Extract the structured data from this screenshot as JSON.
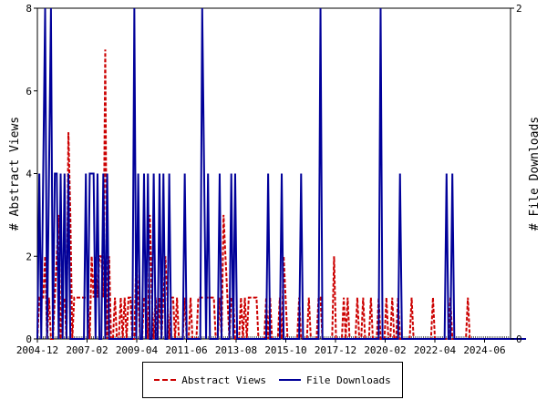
{
  "chart_data": {
    "type": "line",
    "x_axis_ticks": [
      "2004-12",
      "2007-02",
      "2009-04",
      "2011-06",
      "2013-08",
      "2015-10",
      "2017-12",
      "2020-02",
      "2022-04",
      "2024-06"
    ],
    "left_axis": {
      "label": "# Abstract Views",
      "ylim": [
        0,
        8
      ],
      "ticks": [
        "0",
        "2",
        "4",
        "6",
        "8"
      ]
    },
    "right_axis": {
      "label": "# File Downloads",
      "ylim": [
        0,
        2
      ],
      "ticks": [
        "0",
        "2"
      ]
    },
    "months": 245,
    "legend_position": "bottom",
    "grid": false,
    "series": [
      {
        "name": "Abstract Views",
        "axis": "left",
        "style": "dashed",
        "color": "#cc0000",
        "values": [
          0,
          1,
          1,
          1,
          2,
          0,
          1,
          0,
          0,
          1,
          2,
          3,
          0,
          1,
          1,
          0,
          5,
          3,
          0,
          1,
          1,
          1,
          1,
          1,
          1,
          1,
          1,
          0,
          2,
          1,
          2,
          1,
          2,
          2,
          1,
          7,
          0,
          2,
          0,
          0,
          1,
          0,
          0,
          1,
          0,
          1,
          0,
          1,
          1,
          0,
          0,
          2,
          1,
          0,
          0,
          1,
          1,
          0,
          3,
          1,
          0,
          1,
          0,
          1,
          0,
          1,
          2,
          1,
          0,
          1,
          1,
          0,
          1,
          0,
          0,
          0,
          1,
          0,
          0,
          1,
          0,
          0,
          0,
          1,
          1,
          1,
          1,
          1,
          1,
          1,
          1,
          1,
          0,
          0,
          1,
          0,
          3,
          2,
          1,
          0,
          1,
          1,
          0,
          0,
          0,
          1,
          0,
          1,
          0,
          1,
          1,
          1,
          1,
          1,
          0,
          0,
          0,
          0,
          1,
          0,
          1,
          0,
          0,
          0,
          0,
          1,
          0,
          2,
          1,
          0,
          0,
          0,
          0,
          0,
          0,
          1,
          0,
          0,
          0,
          0,
          1,
          0,
          0,
          0,
          0,
          1,
          1,
          0,
          0,
          0,
          0,
          0,
          0,
          2,
          0,
          0,
          0,
          0,
          1,
          0,
          1,
          0,
          0,
          0,
          0,
          1,
          0,
          0,
          1,
          0,
          0,
          0,
          1,
          0,
          0,
          0,
          1,
          0,
          0,
          0,
          1,
          0,
          0,
          1,
          0,
          0,
          1,
          0,
          0,
          0,
          0,
          0,
          0,
          1,
          0,
          0,
          0,
          0,
          0,
          0,
          0,
          0,
          0,
          0,
          1,
          0,
          0,
          0,
          0,
          0,
          0,
          0,
          0,
          1,
          0,
          0,
          0,
          0,
          0,
          0,
          0,
          0,
          1,
          0,
          0,
          0,
          0,
          0,
          0,
          0,
          0,
          0,
          0,
          0,
          0,
          0,
          0,
          0,
          0,
          0,
          0,
          0,
          0,
          0,
          0,
          0,
          0,
          0,
          0,
          0,
          0
        ]
      },
      {
        "name": "File Downloads",
        "axis": "right",
        "style": "solid",
        "color": "#000099",
        "values": [
          0,
          1,
          0,
          1,
          2,
          0,
          1,
          2,
          0,
          1,
          1,
          0,
          1,
          0,
          1,
          0,
          1,
          0,
          0,
          0,
          0,
          0,
          0,
          0,
          0,
          1,
          0,
          1,
          1,
          1,
          0,
          1,
          0,
          0,
          1,
          0,
          1,
          0,
          0,
          0,
          0,
          0,
          0,
          0,
          0,
          0,
          0,
          0,
          0,
          0,
          2,
          0,
          1,
          0,
          0,
          1,
          0,
          1,
          0,
          0,
          1,
          0,
          0,
          1,
          0,
          1,
          0,
          0,
          1,
          0,
          0,
          0,
          0,
          0,
          0,
          0,
          1,
          0,
          0,
          0,
          0,
          0,
          0,
          0,
          0,
          2,
          1,
          0,
          1,
          0,
          0,
          0,
          0,
          0,
          1,
          0,
          0,
          0,
          0,
          0,
          1,
          0,
          1,
          0,
          0,
          0,
          0,
          0,
          0,
          0,
          0,
          0,
          0,
          0,
          0,
          0,
          0,
          0,
          0,
          1,
          0,
          0,
          0,
          0,
          0,
          0,
          1,
          0,
          0,
          0,
          0,
          0,
          0,
          0,
          0,
          0,
          1,
          0,
          0,
          0,
          0,
          0,
          0,
          0,
          0,
          0,
          2,
          0,
          0,
          0,
          0,
          0,
          0,
          0,
          0,
          0,
          0,
          0,
          0,
          0,
          0,
          0,
          0,
          0,
          0,
          0,
          0,
          0,
          0,
          0,
          0,
          0,
          0,
          0,
          0,
          0,
          0,
          2,
          0,
          0,
          0,
          0,
          0,
          0,
          0,
          0,
          0,
          1,
          0,
          0,
          0,
          0,
          0,
          0,
          0,
          0,
          0,
          0,
          0,
          0,
          0,
          0,
          0,
          0,
          0,
          0,
          0,
          0,
          0,
          0,
          0,
          1,
          0,
          0,
          1,
          0,
          0,
          0,
          0,
          0,
          0,
          0,
          0,
          0,
          0,
          0,
          0,
          0,
          0,
          0,
          0,
          0,
          0,
          0,
          0,
          0,
          0,
          0,
          0,
          0,
          0,
          0,
          0,
          0,
          0,
          0,
          0,
          0,
          0,
          0,
          0,
          0,
          0
        ]
      }
    ]
  }
}
